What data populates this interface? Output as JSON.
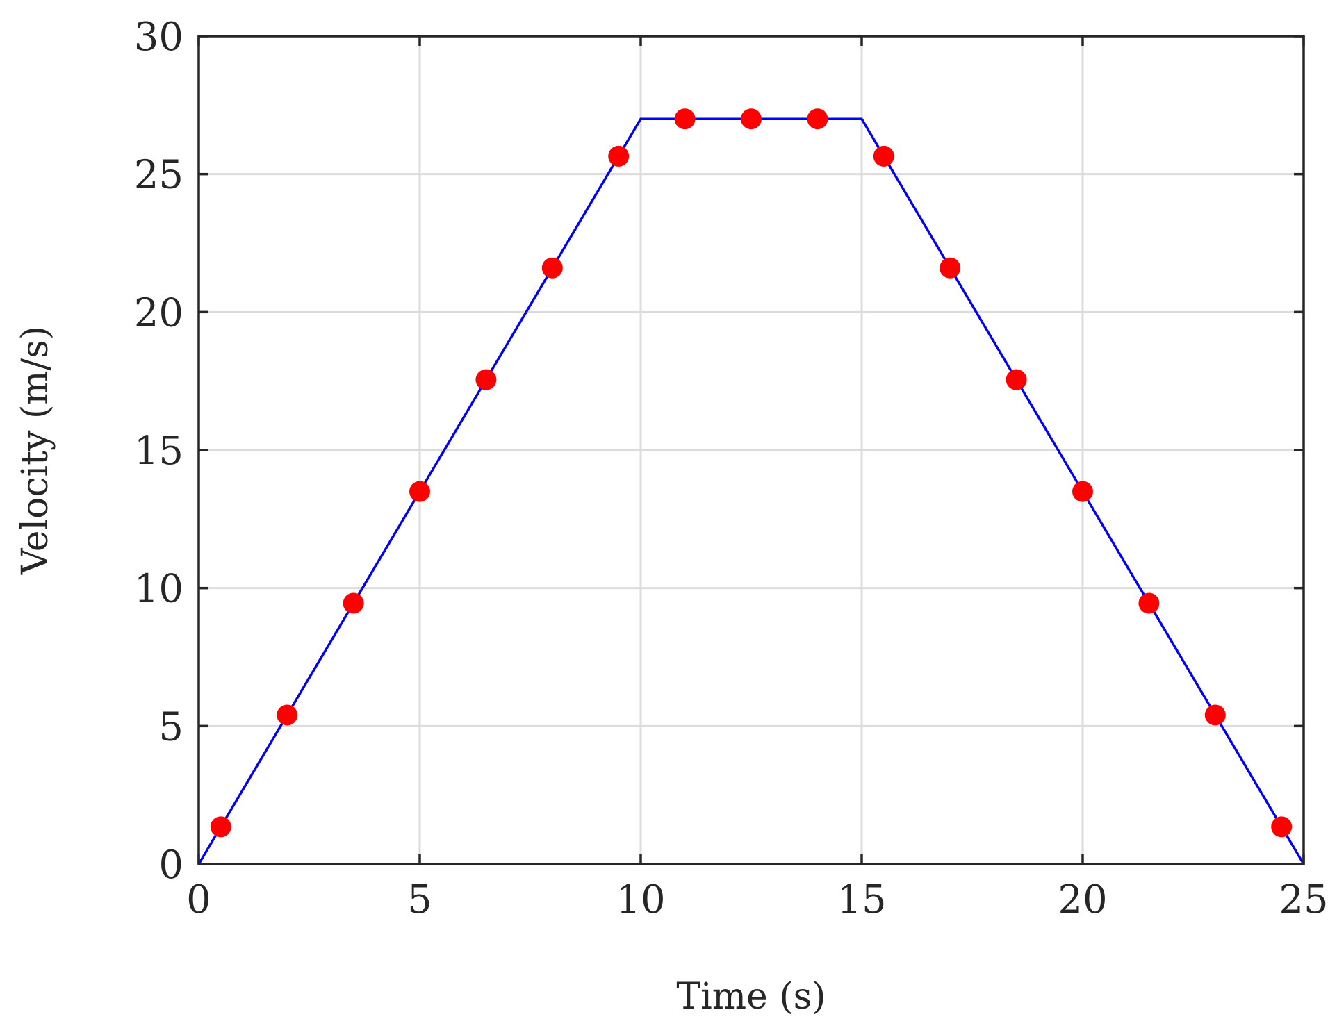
{
  "chart_data": {
    "type": "line",
    "title": "",
    "xlabel": "Time (s)",
    "ylabel": "Velocity (m/s)",
    "xlim": [
      0,
      25
    ],
    "ylim": [
      0,
      30
    ],
    "xticks": [
      0,
      5,
      10,
      15,
      20,
      25
    ],
    "yticks": [
      0,
      5,
      10,
      15,
      20,
      25,
      30
    ],
    "grid": true,
    "series": [
      {
        "kind": "line",
        "color": "#0000ff",
        "x": [
          0,
          10,
          15,
          25
        ],
        "y": [
          0,
          27,
          27,
          0
        ]
      },
      {
        "kind": "scatter",
        "color": "#ff0000",
        "x": [
          0.5,
          2.0,
          3.5,
          5.0,
          6.5,
          8.0,
          9.5,
          11.0,
          12.5,
          14.0,
          15.5,
          17.0,
          18.5,
          20.0,
          21.5,
          23.0,
          24.5
        ],
        "y": [
          1.35,
          5.4,
          9.45,
          13.5,
          17.55,
          21.6,
          25.65,
          27.0,
          27.0,
          27.0,
          25.65,
          21.6,
          17.55,
          13.5,
          9.45,
          5.4,
          1.35
        ]
      }
    ]
  }
}
